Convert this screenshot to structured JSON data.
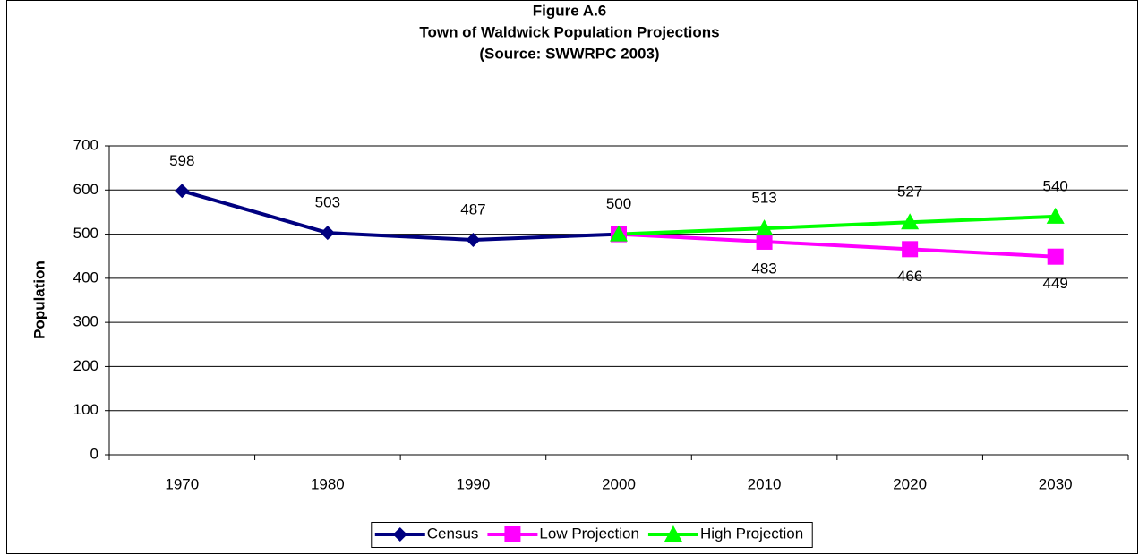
{
  "chart_data": {
    "type": "line",
    "title": [
      "Figure A.6",
      "Town of Waldwick Population Projections",
      "(Source:  SWWRPC 2003)"
    ],
    "y_label": "Population",
    "categories": [
      "1970",
      "1980",
      "1990",
      "2000",
      "2010",
      "2020",
      "2030"
    ],
    "ylim": [
      0,
      700
    ],
    "yticks": [
      0,
      100,
      200,
      300,
      400,
      500,
      600,
      700
    ],
    "grid": true,
    "legend": "bottom",
    "series": [
      {
        "name": "Census",
        "color": "#000080",
        "marker": "diamond",
        "label_position": "above",
        "values": [
          598,
          503,
          487,
          500,
          null,
          null,
          null
        ]
      },
      {
        "name": "Low Projection",
        "color": "#ff00ff",
        "marker": "square",
        "label_position": "below",
        "values": [
          null,
          null,
          null,
          500,
          483,
          466,
          449
        ],
        "value_labels": [
          null,
          null,
          null,
          null,
          "483",
          "466",
          "449"
        ]
      },
      {
        "name": "High Projection",
        "color": "#00ff00",
        "marker": "triangle",
        "label_position": "above",
        "values": [
          null,
          null,
          null,
          500,
          513,
          527,
          540
        ],
        "value_labels": [
          null,
          null,
          null,
          null,
          "513",
          "527",
          "540"
        ]
      }
    ]
  }
}
